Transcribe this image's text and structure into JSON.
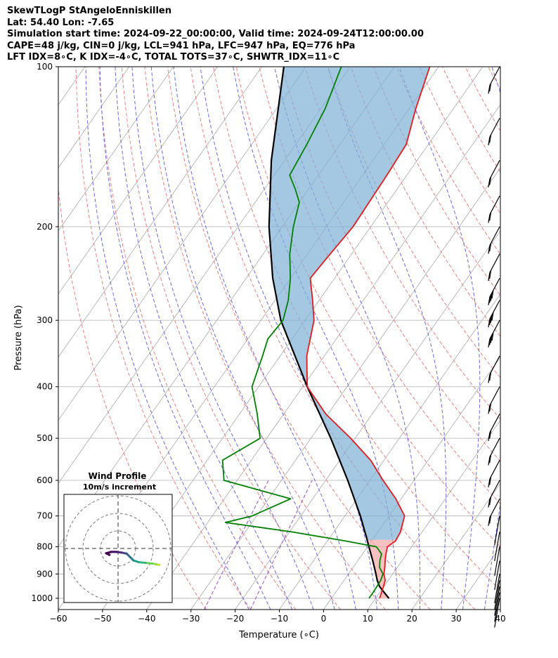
{
  "header": {
    "line1": "SkewTLogP StAngeloEnniskillen",
    "line2": "Lat: 54.40   Lon: -7.65",
    "line3": "Simulation start time: 2024-09-22_00:00:00, Valid time: 2024-09-24T12:00:00.00",
    "line4": "CAPE=48 j/kg, CIN=0 j/kg, LCL=941 hPa, LFC=947 hPa, EQ=776 hPa",
    "line5": "LFT IDX=8∘C, K IDX=-4∘C, TOTAL TOTS=37∘C, SHWTR_IDX=11∘C"
  },
  "chart_data": {
    "type": "line",
    "skew": "skew-T log-P",
    "xlabel": "Temperature (∘C)",
    "ylabel": "Pressure (hPa)",
    "xlim": [
      -60,
      40
    ],
    "ylim": [
      1050,
      100
    ],
    "y_scale": "log",
    "grid": true,
    "x_ticks": [
      -60,
      -50,
      -40,
      -30,
      -20,
      -10,
      0,
      10,
      20,
      30,
      40
    ],
    "x_tick_labels": [
      "−60",
      "−50",
      "−40",
      "−30",
      "−20",
      "−10",
      "0",
      "10",
      "20",
      "30",
      "40"
    ],
    "y_ticks": [
      1000,
      900,
      800,
      700,
      600,
      500,
      400,
      300,
      200,
      100
    ],
    "y_tick_labels": [
      "1000",
      "900",
      "800",
      "700",
      "600",
      "500",
      "400",
      "300",
      "200",
      "100"
    ],
    "colors": {
      "temperature": "#e41a1c",
      "dewpoint": "#008000",
      "parcel": "#000000",
      "cape_fill": "#7fb0d5",
      "cin_fill": "#f4a6a6",
      "dry_adiabat": "#f08080",
      "moist_adiabat": "#6a6ae8",
      "mixing_ratio": "#9b4dca",
      "isotherm": "#aaaaaa"
    },
    "series": [
      {
        "role": "temperature",
        "points": [
          [
            1000,
            10.9
          ],
          [
            975,
            10.4
          ],
          [
            950,
            9.9
          ],
          [
            925,
            9.3
          ],
          [
            900,
            8.0
          ],
          [
            875,
            7.2
          ],
          [
            850,
            6.2
          ],
          [
            825,
            5.3
          ],
          [
            800,
            4.5
          ],
          [
            780,
            5.4
          ],
          [
            750,
            5.1
          ],
          [
            700,
            3.5
          ],
          [
            650,
            -1.2
          ],
          [
            600,
            -7.0
          ],
          [
            550,
            -13.0
          ],
          [
            500,
            -21.0
          ],
          [
            450,
            -30.5
          ],
          [
            400,
            -39.0
          ],
          [
            350,
            -44.0
          ],
          [
            300,
            -48.0
          ],
          [
            275,
            -51.5
          ],
          [
            250,
            -55.5
          ],
          [
            230,
            -55.0
          ],
          [
            200,
            -54.0
          ],
          [
            160,
            -54.5
          ],
          [
            140,
            -55.0
          ],
          [
            120,
            -58.5
          ],
          [
            100,
            -62.0
          ]
        ]
      },
      {
        "role": "dewpoint",
        "points": [
          [
            1000,
            8.5
          ],
          [
            975,
            8.5
          ],
          [
            950,
            8.4
          ],
          [
            925,
            8.3
          ],
          [
            900,
            7.8
          ],
          [
            875,
            6.0
          ],
          [
            850,
            5.0
          ],
          [
            825,
            4.3
          ],
          [
            800,
            2.0
          ],
          [
            780,
            -6.0
          ],
          [
            750,
            -19.5
          ],
          [
            720,
            -36.0
          ],
          [
            700,
            -31.0
          ],
          [
            650,
            -25.0
          ],
          [
            600,
            -43.0
          ],
          [
            550,
            -46.5
          ],
          [
            500,
            -41.5
          ],
          [
            450,
            -46.0
          ],
          [
            400,
            -51.5
          ],
          [
            350,
            -54.0
          ],
          [
            325,
            -55.5
          ],
          [
            300,
            -55.0
          ],
          [
            275,
            -57.0
          ],
          [
            250,
            -60.0
          ],
          [
            225,
            -64.0
          ],
          [
            200,
            -67.5
          ],
          [
            180,
            -70.0
          ],
          [
            170,
            -73.0
          ],
          [
            160,
            -76.5
          ],
          [
            140,
            -77.5
          ],
          [
            120,
            -79.0
          ],
          [
            100,
            -82.0
          ]
        ]
      },
      {
        "role": "parcel",
        "points": [
          [
            1000,
            13.0
          ],
          [
            975,
            11.0
          ],
          [
            950,
            9.0
          ],
          [
            925,
            7.5
          ],
          [
            900,
            6.2
          ],
          [
            850,
            3.4
          ],
          [
            800,
            0.3
          ],
          [
            776,
            -1.2
          ],
          [
            700,
            -6.5
          ],
          [
            600,
            -15.0
          ],
          [
            500,
            -25.5
          ],
          [
            400,
            -39.0
          ],
          [
            300,
            -55.5
          ],
          [
            250,
            -64.0
          ],
          [
            200,
            -73.0
          ],
          [
            150,
            -83.0
          ],
          [
            100,
            -95.0
          ]
        ]
      }
    ],
    "wind_barbs_pressures": [
      1000,
      975,
      950,
      925,
      900,
      850,
      800,
      750,
      700,
      650,
      600,
      550,
      500,
      450,
      400,
      350,
      300,
      275,
      250,
      225,
      200,
      175,
      150,
      125,
      100
    ],
    "hodograph": {
      "title": "Wind Profile",
      "subtitle": "10m/s increment",
      "points": [
        [
          12,
          -4.8
        ],
        [
          11,
          -4.6
        ],
        [
          10,
          -4.4
        ],
        [
          8,
          -4.2
        ],
        [
          6,
          -4.0
        ],
        [
          4.5,
          -3.5
        ],
        [
          3.5,
          -2.5
        ],
        [
          2.5,
          -1.5
        ],
        [
          1,
          -1.2
        ],
        [
          -0.5,
          -1.0
        ],
        [
          -2,
          -1.0
        ],
        [
          -3.5,
          -1.4
        ],
        [
          -2.5,
          -1.9
        ]
      ]
    }
  }
}
